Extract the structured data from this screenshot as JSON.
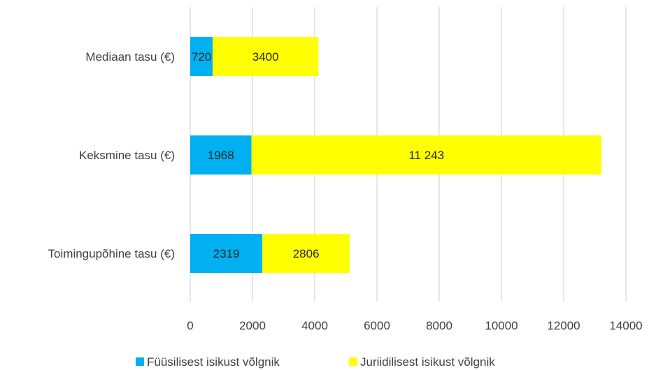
{
  "chart_data": {
    "type": "bar",
    "orientation": "horizontal",
    "stacked": true,
    "categories": [
      "Mediaan tasu (€)",
      "Keksmine tasu (€)",
      "Toimingupõhine tasu (€)"
    ],
    "series": [
      {
        "name": "Füüsilisest isikust võlgnik",
        "color": "#00b0f0",
        "values": [
          720,
          1968,
          2319
        ],
        "labels": [
          "720",
          "1968",
          "2319"
        ]
      },
      {
        "name": "Juriidilisest isikust võlgnik",
        "color": "#ffff00",
        "values": [
          3400,
          11243,
          2806
        ],
        "labels": [
          "3400",
          "11 243",
          "2806"
        ]
      }
    ],
    "xlim": [
      0,
      14000
    ],
    "xticks": [
      0,
      2000,
      4000,
      6000,
      8000,
      10000,
      12000,
      14000
    ],
    "xtick_labels": [
      "0",
      "2000",
      "4000",
      "6000",
      "8000",
      "10000",
      "12000",
      "14000"
    ],
    "grid": "vertical",
    "legend_position": "bottom"
  }
}
